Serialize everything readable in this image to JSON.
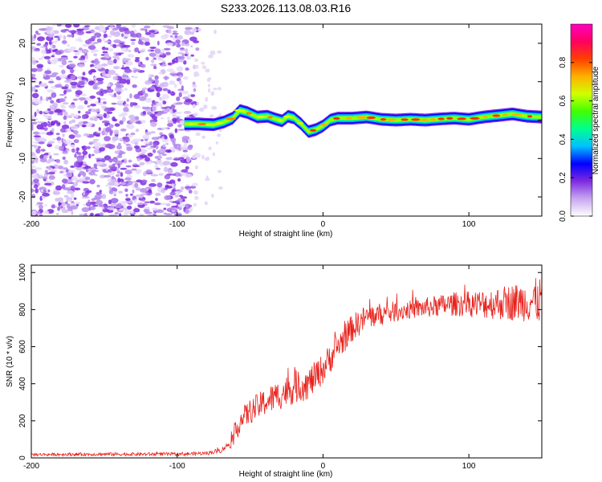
{
  "title": "S233.2026.113.08.03.R16",
  "chart_data": [
    {
      "type": "heatmap",
      "name": "spectrogram",
      "xlabel": "Height of straight line (km)",
      "ylabel": "Frequency (Hz)",
      "xlim": [
        -200,
        150
      ],
      "ylim": [
        -25,
        25
      ],
      "xticks": [
        -200,
        -100,
        0,
        100
      ],
      "xtick_labels": [
        "-200",
        "-100",
        "0",
        "100"
      ],
      "yticks": [
        -20,
        -10,
        0,
        10,
        20
      ],
      "ytick_labels": [
        "-20",
        "-10",
        "0",
        "10",
        "20"
      ],
      "noise_region_x": [
        -200,
        -92
      ],
      "ridge": {
        "x": [
          -95,
          -85,
          -75,
          -68,
          -62,
          -57,
          -52,
          -45,
          -38,
          -32,
          -28,
          -24,
          -20,
          -15,
          -10,
          -5,
          0,
          5,
          10,
          20,
          30,
          40,
          50,
          60,
          70,
          80,
          90,
          100,
          110,
          120,
          130,
          140,
          150
        ],
        "y": [
          -1.0,
          -1.0,
          -1.2,
          -0.5,
          0.5,
          2.5,
          2.0,
          0.8,
          1.0,
          0.2,
          -0.2,
          1.0,
          0.6,
          -1.0,
          -3.0,
          -2.5,
          -1.5,
          0.0,
          0.5,
          0.5,
          0.8,
          0.2,
          0.0,
          0.2,
          0.0,
          0.3,
          0.5,
          0.2,
          0.8,
          1.2,
          1.6,
          1.0,
          0.8
        ]
      }
    },
    {
      "type": "colorbar",
      "label": "Normalized spectral amplitude",
      "range": [
        0,
        1
      ],
      "ticks": [
        0.0,
        0.2,
        0.4,
        0.6,
        0.8
      ],
      "tick_labels": [
        "0.0",
        "0.2",
        "0.4",
        "0.6",
        "0.8"
      ],
      "colors": [
        "#ffffff",
        "#c7a6f0",
        "#7f2be0",
        "#0000ff",
        "#00c0ff",
        "#00ff90",
        "#40ff00",
        "#d0ff00",
        "#ffb000",
        "#ff4000",
        "#ff0060",
        "#ff00c0"
      ]
    },
    {
      "type": "line",
      "name": "snr",
      "xlabel": "Height of straight line (km)",
      "ylabel": "SNR (10 * v/v)",
      "xlim": [
        -200,
        150
      ],
      "ylim": [
        0,
        1040
      ],
      "xticks": [
        -200,
        -100,
        0,
        100
      ],
      "xtick_labels": [
        "-200",
        "-100",
        "0",
        "100"
      ],
      "yticks": [
        0,
        200,
        400,
        600,
        800,
        1000
      ],
      "ytick_labels": [
        "0",
        "200",
        "400",
        "600",
        "800",
        "1000"
      ],
      "color": "#e8221c",
      "trend": {
        "x": [
          -200,
          -150,
          -100,
          -80,
          -70,
          -62,
          -57,
          -50,
          -40,
          -30,
          -20,
          -10,
          0,
          10,
          20,
          30,
          50,
          70,
          90,
          110,
          130,
          150
        ],
        "y": [
          18,
          20,
          20,
          25,
          40,
          90,
          200,
          250,
          300,
          340,
          380,
          400,
          480,
          600,
          700,
          760,
          790,
          810,
          830,
          830,
          840,
          850
        ]
      },
      "spread": {
        "x": [
          -200,
          -80,
          -65,
          -60,
          -20,
          10,
          60,
          100,
          140,
          150
        ],
        "y": [
          8,
          10,
          15,
          60,
          90,
          80,
          50,
          70,
          110,
          130
        ]
      }
    }
  ]
}
